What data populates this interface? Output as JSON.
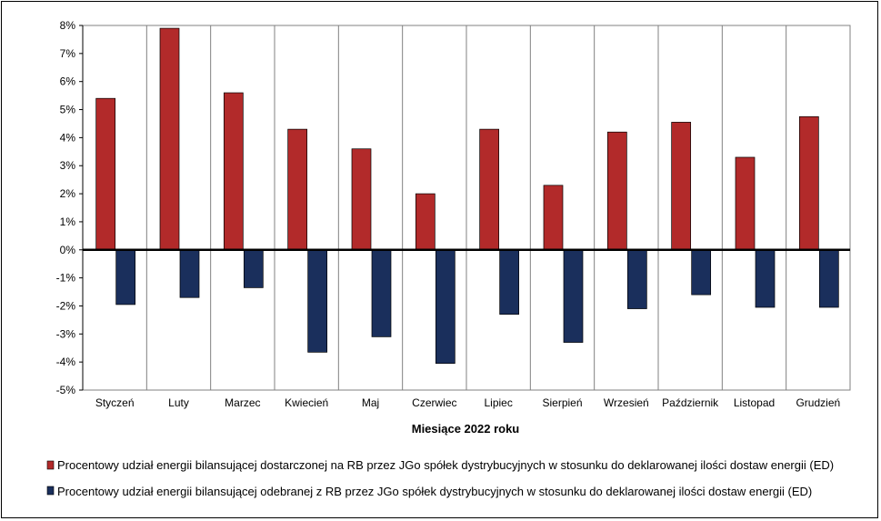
{
  "chart_data": {
    "type": "bar",
    "categories": [
      "Styczeń",
      "Luty",
      "Marzec",
      "Kwiecień",
      "Maj",
      "Czerwiec",
      "Lipiec",
      "Sierpień",
      "Wrzesień",
      "Październik",
      "Listopad",
      "Grudzień"
    ],
    "series": [
      {
        "name": "Procentowy udział energii bilansującej dostarczonej na RB przez JGo spółek dystrybucyjnych w stosunku do deklarowanej ilości dostaw energii (ED)",
        "color": "#B22A2A",
        "values": [
          5.4,
          7.9,
          5.6,
          4.3,
          3.6,
          2.0,
          4.3,
          2.3,
          4.2,
          4.55,
          3.3,
          4.75
        ]
      },
      {
        "name": "Procentowy udział energii bilansującej odebranej z RB przez JGo spółek dystrybucyjnych w stosunku do deklarowanej ilości dostaw energii (ED)",
        "color": "#1A2F5C",
        "values": [
          -1.95,
          -1.7,
          -1.35,
          -3.65,
          -3.1,
          -4.05,
          -2.3,
          -3.3,
          -2.1,
          -1.6,
          -2.05,
          -2.05
        ]
      }
    ],
    "xlabel": "Miesiące 2022  roku",
    "ylabel": "",
    "ylim": [
      -5,
      8
    ],
    "yticks": [
      "8%",
      "7%",
      "6%",
      "5%",
      "4%",
      "3%",
      "2%",
      "1%",
      "0%",
      "-1%",
      "-2%",
      "-3%",
      "-4%",
      "-5%"
    ],
    "grid": true,
    "legend_position": "bottom"
  }
}
